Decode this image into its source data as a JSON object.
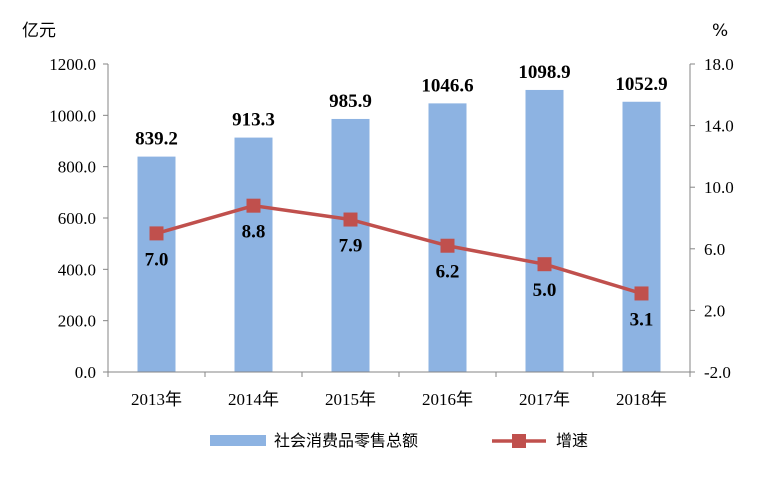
{
  "chart_data": {
    "type": "bar+line",
    "categories": [
      "2013年",
      "2014年",
      "2015年",
      "2016年",
      "2017年",
      "2018年"
    ],
    "series": [
      {
        "name": "社会消费品零售总额",
        "type": "bar",
        "axis": "left",
        "values": [
          839.2,
          913.3,
          985.9,
          1046.6,
          1098.9,
          1052.9
        ],
        "labels": [
          "839.2",
          "913.3",
          "985.9",
          "1046.6",
          "1098.9",
          "1052.9"
        ],
        "color": "#8db3e2"
      },
      {
        "name": "增速",
        "type": "line",
        "axis": "right",
        "values": [
          7.0,
          8.8,
          7.9,
          6.2,
          5.0,
          3.1
        ],
        "labels": [
          "7.0",
          "8.8",
          "7.9",
          "6.2",
          "5.0",
          "3.1"
        ],
        "color": "#c0504d"
      }
    ],
    "y_left": {
      "unit": "亿元",
      "ylim": [
        0,
        1200
      ],
      "ticks": [
        "0.0",
        "200.0",
        "400.0",
        "600.0",
        "800.0",
        "1000.0",
        "1200.0"
      ]
    },
    "y_right": {
      "unit": "%",
      "ylim": [
        -2,
        18
      ],
      "ticks": [
        "-2.0",
        "2.0",
        "6.0",
        "10.0",
        "14.0",
        "18.0"
      ]
    },
    "grid": false,
    "legend": "bottom"
  }
}
